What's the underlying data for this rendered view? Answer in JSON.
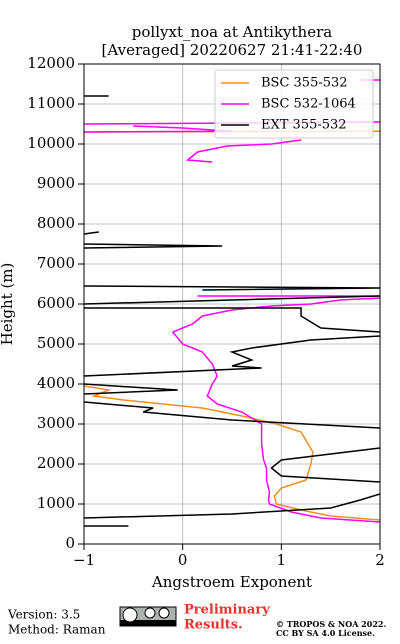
{
  "chart_data": {
    "type": "line",
    "title": "pollyxt_noa at Antikythera",
    "subtitle": "[Averaged] 20220627 21:41-22:40",
    "x_label": "Angstroem Exponent",
    "y_label": "Height (m)",
    "xlim": [
      -1,
      2
    ],
    "ylim": [
      0,
      12000
    ],
    "xticks": [
      {
        "value": -1,
        "label": "−1"
      },
      0,
      1,
      2
    ],
    "yticks": [
      0,
      1000,
      2000,
      3000,
      4000,
      5000,
      6000,
      7000,
      8000,
      9000,
      10000,
      11000,
      12000
    ],
    "grid": true,
    "legend": "upper right",
    "series": [
      {
        "name": "BSC 355-532",
        "color": "#f28e1e",
        "x": [
          2.0,
          1.5,
          1.2,
          0.95,
          0.93,
          1.0,
          1.25,
          1.3,
          1.32,
          1.2,
          0.95,
          0.6,
          0.2,
          -0.2,
          -0.6,
          -0.9,
          -0.75,
          -1,
          null,
          -1,
          2.0
        ],
        "y": [
          600,
          700,
          850,
          1000,
          1200,
          1400,
          1600,
          2000,
          2300,
          2800,
          3000,
          3200,
          3400,
          3500,
          3600,
          3700,
          3850,
          3950,
          null,
          10300,
          10320
        ]
      },
      {
        "name": "BSC 532-1064",
        "color": "#ff00ff",
        "x": [
          2.0,
          1.4,
          1.1,
          0.88,
          0.87,
          0.88,
          0.85,
          0.85,
          0.82,
          0.8,
          0.8,
          0.6,
          0.35,
          0.25,
          0.3,
          0.35,
          0.3,
          0.2,
          0.0,
          -0.1,
          0.1,
          0.2,
          0.5,
          0.9,
          1.3,
          1.6,
          2.0,
          null,
          0.15,
          2.0,
          null,
          0.3,
          0.05,
          0.1,
          0.15,
          0.45,
          0.9,
          1.2,
          null,
          -1,
          0.5,
          0.0,
          -0.5,
          null,
          -1,
          2.0,
          null,
          1.8,
          2.0
        ],
        "y": [
          550,
          650,
          800,
          1000,
          1100,
          1300,
          1600,
          1900,
          2100,
          2500,
          3000,
          3300,
          3500,
          3700,
          4000,
          4200,
          4500,
          4800,
          5000,
          5300,
          5500,
          5700,
          5850,
          5950,
          6000,
          6100,
          6150,
          null,
          6200,
          6200,
          null,
          9550,
          9600,
          9700,
          9800,
          9950,
          10000,
          10100,
          null,
          10300,
          10320,
          10400,
          10450,
          null,
          10500,
          10550,
          null,
          11600,
          11600
        ]
      },
      {
        "name": "EXT 355-532",
        "color": "#000000",
        "x": [
          -1,
          -0.55,
          null,
          -1,
          0.5,
          1.5,
          1.8,
          2.0,
          null,
          2.0,
          1.0,
          0.9,
          1.0,
          2.0,
          null,
          2.0,
          0.5,
          -0.4,
          -0.3,
          -1,
          null,
          -1,
          -0.05,
          -1,
          null,
          -1,
          0.8,
          0.5,
          0.7,
          0.5,
          0.7,
          1.3,
          2.0,
          null,
          2.0,
          1.4,
          1.2,
          1.2,
          -1,
          null,
          -1,
          2.0,
          null,
          0.2,
          2.0,
          -1,
          null,
          -1,
          0.4,
          -1,
          null,
          -1,
          -0.85,
          null,
          -1,
          -0.75
        ],
        "y": [
          450,
          450,
          null,
          650,
          750,
          900,
          1100,
          1250,
          null,
          1550,
          1700,
          1900,
          2100,
          2400,
          null,
          2900,
          3100,
          3300,
          3400,
          3550,
          null,
          3750,
          3850,
          4000,
          null,
          4200,
          4400,
          4450,
          4600,
          4800,
          4900,
          5100,
          5200,
          null,
          5300,
          5400,
          5700,
          5900,
          5900,
          null,
          6000,
          6200,
          null,
          6350,
          6400,
          6450,
          null,
          7400,
          7450,
          7500,
          null,
          7750,
          7800,
          null,
          11200,
          11200
        ]
      }
    ]
  },
  "footer": {
    "version": "Version: 3.5",
    "method": "Method: Raman",
    "status_1": "Preliminary",
    "status_2": "Results.",
    "copyright": "© TROPOS & NOA 2022.",
    "license": "CC BY SA 4.0 License."
  }
}
